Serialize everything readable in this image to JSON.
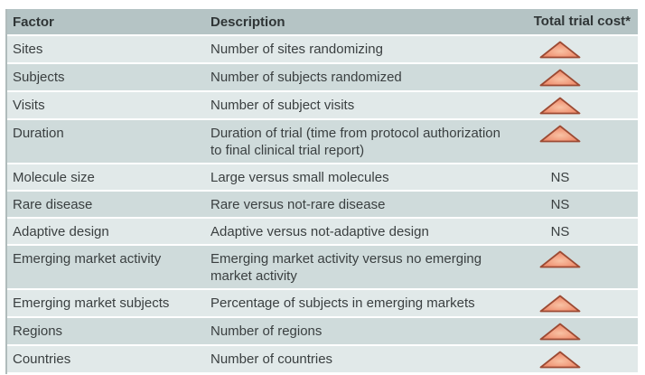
{
  "table": {
    "columns": [
      "Factor",
      "Description",
      "Total trial cost*"
    ],
    "ns_label": "NS",
    "rows": [
      {
        "factor": "Sites",
        "description": "Number of sites randomizing",
        "cost": "increase"
      },
      {
        "factor": "Subjects",
        "description": "Number of subjects randomized",
        "cost": "increase"
      },
      {
        "factor": "Visits",
        "description": "Number of subject visits",
        "cost": "increase"
      },
      {
        "factor": "Duration",
        "description": "Duration of trial (time from protocol authorization to final clinical trial report)",
        "cost": "increase"
      },
      {
        "factor": "Molecule size",
        "description": "Large versus small molecules",
        "cost": "NS"
      },
      {
        "factor": "Rare disease",
        "description": "Rare versus not-rare disease",
        "cost": "NS"
      },
      {
        "factor": "Adaptive design",
        "description": "Adaptive versus not-adaptive design",
        "cost": "NS"
      },
      {
        "factor": "Emerging market activity",
        "description": "Emerging market activity versus no emerging market activity",
        "cost": "increase"
      },
      {
        "factor": "Emerging market subjects",
        "description": "Percentage of subjects in emerging markets",
        "cost": "increase"
      },
      {
        "factor": "Regions",
        "description": "Number of regions",
        "cost": "increase"
      },
      {
        "factor": "Countries",
        "description": "Number of countries",
        "cost": "increase"
      }
    ],
    "icons": {
      "cost_increase": "triangle-up-icon"
    },
    "colors": {
      "header_bg": "#b5c4c5",
      "row_light": "#e1e9e9",
      "row_dark": "#cfdbdb",
      "text": "#3a3f40",
      "triangle_fill": "#f09273",
      "triangle_fill_light": "#f8c2a4",
      "triangle_stroke": "#9c4a33"
    }
  }
}
